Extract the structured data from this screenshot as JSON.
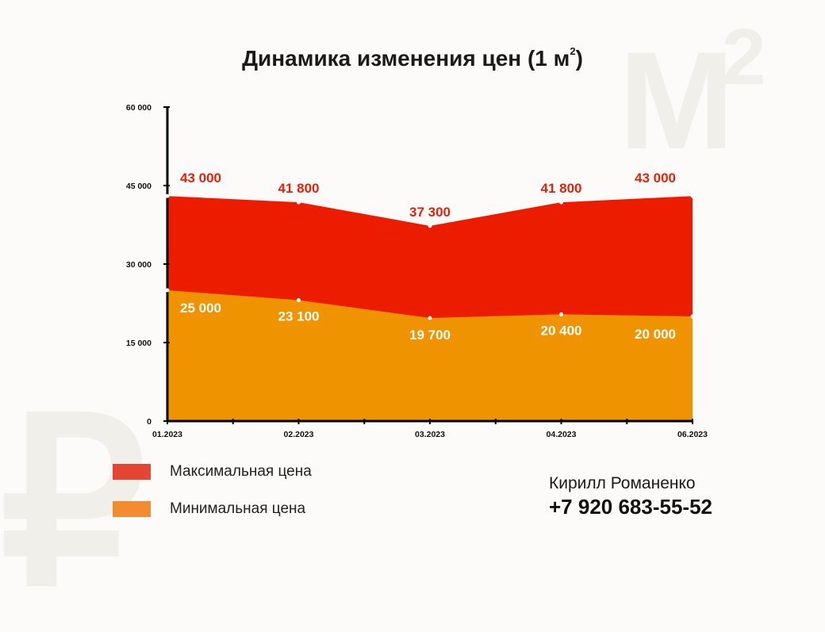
{
  "title": {
    "text": "Динамика изменения цен (1 м",
    "sup": "2",
    "close": ")"
  },
  "watermark": {
    "m": "M",
    "sup": "2",
    "rub": "₽"
  },
  "colors": {
    "max": "#ec1c00",
    "min": "#f09300",
    "max_legend": "#e54634",
    "min_legend": "#f28c2e",
    "max_label": "#e0230b"
  },
  "chart_data": {
    "type": "area",
    "x": [
      "01.2023",
      "02.2023",
      "03.2023",
      "04.2023",
      "06.2023"
    ],
    "series": [
      {
        "name": "Максимальная цена",
        "values": [
          43000,
          41800,
          37300,
          41800,
          43000
        ],
        "labels": [
          "43 000",
          "41 800",
          "37 300",
          "41 800",
          "43 000"
        ]
      },
      {
        "name": "Минимальная цена",
        "values": [
          25000,
          23100,
          19700,
          20400,
          20000
        ],
        "labels": [
          "25 000",
          "23 100",
          "19 700",
          "20 400",
          "20 000"
        ]
      }
    ],
    "y_ticks": [
      0,
      15000,
      30000,
      45000,
      60000
    ],
    "y_tick_labels": [
      "0",
      "15 000",
      "30 000",
      "45 000",
      "60 000"
    ],
    "ylim": [
      0,
      60000
    ],
    "grid": false,
    "legend_position": "bottom-left"
  },
  "legend": {
    "max": "Максимальная цена",
    "min": "Минимальная цена"
  },
  "contact": {
    "name": "Кирилл Романенко",
    "phone": "+7 920 683-55-52"
  }
}
